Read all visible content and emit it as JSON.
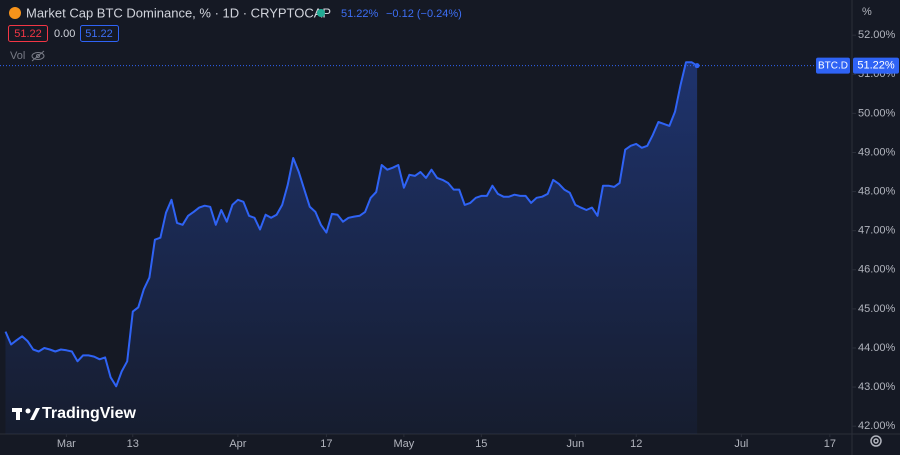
{
  "header": {
    "title": "Market Cap BTC Dominance, % · 1D · CRYPTOCAP",
    "last": "51.22%",
    "change": "−0.12 (−0.24%)",
    "boxes": [
      "51.22",
      "0.00",
      "51.22"
    ],
    "vol": "Vol"
  },
  "brand": "TradingView",
  "chart_data": {
    "type": "area",
    "color": "#2f63f5",
    "axis_unit": "%",
    "price_tag": {
      "symbol": "BTC.D",
      "label": "51.22%"
    },
    "x": [
      "02-18",
      "02-19",
      "02-20",
      "02-21",
      "02-22",
      "02-23",
      "02-24",
      "02-25",
      "02-26",
      "02-27",
      "02-28",
      "03-01",
      "03-02",
      "03-03",
      "03-04",
      "03-05",
      "03-06",
      "03-07",
      "03-08",
      "03-09",
      "03-10",
      "03-11",
      "03-12",
      "03-13",
      "03-14",
      "03-15",
      "03-16",
      "03-17",
      "03-18",
      "03-19",
      "03-20",
      "03-21",
      "03-22",
      "03-23",
      "03-24",
      "03-25",
      "03-26",
      "03-27",
      "03-28",
      "03-29",
      "03-30",
      "03-31",
      "04-01",
      "04-02",
      "04-03",
      "04-04",
      "04-05",
      "04-06",
      "04-07",
      "04-08",
      "04-09",
      "04-10",
      "04-11",
      "04-12",
      "04-13",
      "04-14",
      "04-15",
      "04-16",
      "04-17",
      "04-18",
      "04-19",
      "04-20",
      "04-21",
      "04-22",
      "04-23",
      "04-24",
      "04-25",
      "04-26",
      "04-27",
      "04-28",
      "04-29",
      "04-30",
      "05-01",
      "05-02",
      "05-03",
      "05-04",
      "05-05",
      "05-06",
      "05-07",
      "05-08",
      "05-09",
      "05-10",
      "05-11",
      "05-12",
      "05-13",
      "05-14",
      "05-15",
      "05-16",
      "05-17",
      "05-18",
      "05-19",
      "05-20",
      "05-21",
      "05-22",
      "05-23",
      "05-24",
      "05-25",
      "05-26",
      "05-27",
      "05-28",
      "05-29",
      "05-30",
      "05-31",
      "06-01",
      "06-02",
      "06-03",
      "06-04",
      "06-05",
      "06-06",
      "06-07",
      "06-08",
      "06-09",
      "06-10",
      "06-11",
      "06-12",
      "06-13",
      "06-14",
      "06-15",
      "06-16",
      "06-17",
      "06-18",
      "06-19",
      "06-20",
      "06-21",
      "06-22",
      "06-23"
    ],
    "values": [
      44.42,
      44.09,
      44.2,
      44.3,
      44.17,
      43.96,
      43.91,
      44.0,
      43.96,
      43.91,
      43.96,
      43.94,
      43.91,
      43.66,
      43.81,
      43.81,
      43.78,
      43.71,
      43.76,
      43.25,
      43.02,
      43.4,
      43.66,
      44.93,
      45.04,
      45.5,
      45.8,
      46.77,
      46.82,
      47.46,
      47.79,
      47.2,
      47.15,
      47.38,
      47.48,
      47.59,
      47.64,
      47.61,
      47.15,
      47.53,
      47.23,
      47.66,
      47.79,
      47.74,
      47.38,
      47.33,
      47.03,
      47.41,
      47.33,
      47.41,
      47.66,
      48.17,
      48.86,
      48.5,
      48.05,
      47.61,
      47.48,
      47.15,
      46.95,
      47.43,
      47.41,
      47.23,
      47.33,
      47.36,
      47.38,
      47.48,
      47.84,
      47.99,
      48.68,
      48.56,
      48.61,
      48.68,
      48.1,
      48.43,
      48.4,
      48.5,
      48.35,
      48.56,
      48.35,
      48.3,
      48.22,
      48.05,
      48.05,
      47.66,
      47.71,
      47.84,
      47.89,
      47.89,
      48.15,
      47.94,
      47.87,
      47.87,
      47.92,
      47.89,
      47.89,
      47.71,
      47.84,
      47.87,
      47.94,
      48.3,
      48.2,
      48.05,
      47.97,
      47.66,
      47.59,
      47.53,
      47.59,
      47.38,
      48.15,
      48.15,
      48.12,
      48.22,
      49.07,
      49.17,
      49.22,
      49.12,
      49.17,
      49.45,
      49.78,
      49.73,
      49.68,
      50.04,
      50.72,
      51.31,
      51.31,
      51.22
    ],
    "xlim": [
      "02-17",
      "07-21"
    ],
    "xticks": [
      {
        "value": "03-01",
        "label": "Mar"
      },
      {
        "value": "03-13",
        "label": "13"
      },
      {
        "value": "04-01",
        "label": "Apr"
      },
      {
        "value": "04-17",
        "label": "17"
      },
      {
        "value": "05-01",
        "label": "May"
      },
      {
        "value": "05-15",
        "label": "15"
      },
      {
        "value": "06-01",
        "label": "Jun"
      },
      {
        "value": "06-12",
        "label": "12"
      },
      {
        "value": "07-01",
        "label": "Jul"
      },
      {
        "value": "07-17",
        "label": "17"
      }
    ],
    "ylim": [
      41.8,
      52.9
    ],
    "yticks": [
      {
        "value": 42,
        "label": "42.00%"
      },
      {
        "value": 43,
        "label": "43.00%"
      },
      {
        "value": 44,
        "label": "44.00%"
      },
      {
        "value": 45,
        "label": "45.00%"
      },
      {
        "value": 46,
        "label": "46.00%"
      },
      {
        "value": 47,
        "label": "47.00%"
      },
      {
        "value": 48,
        "label": "48.00%"
      },
      {
        "value": 49,
        "label": "49.00%"
      },
      {
        "value": 50,
        "label": "50.00%"
      },
      {
        "value": 51,
        "label": "51.00%"
      },
      {
        "value": 52,
        "label": "52.00%"
      }
    ],
    "grid": false
  }
}
